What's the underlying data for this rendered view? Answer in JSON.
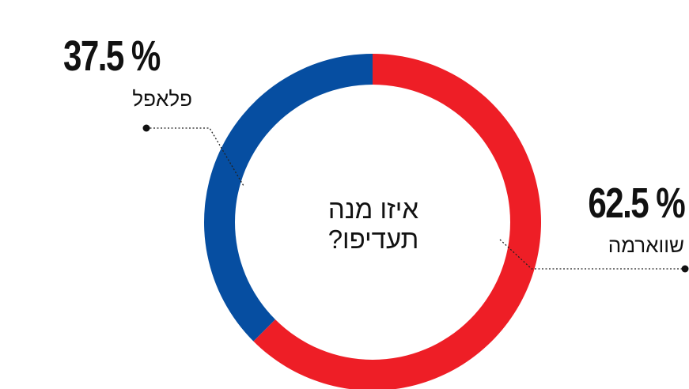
{
  "chart_data": {
    "type": "pie",
    "title": "איזו מנה תעדיפו?",
    "slices": [
      {
        "label": "שווארמה",
        "value": 62.5,
        "value_text": "62.5 %",
        "color": "#ee1e26"
      },
      {
        "label": "פלאפל",
        "value": 37.5,
        "value_text": "37.5 %",
        "color": "#064ea1"
      }
    ]
  }
}
